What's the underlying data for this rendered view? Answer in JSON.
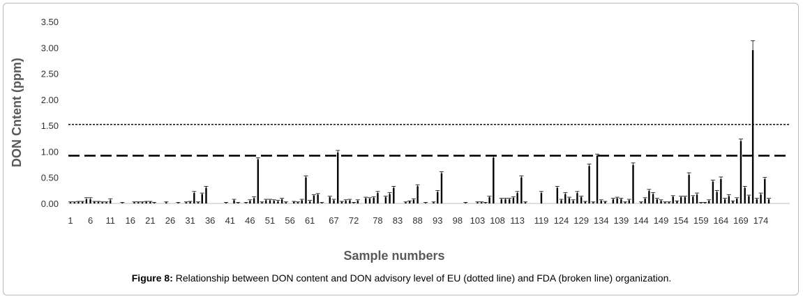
{
  "caption": {
    "label": "Figure 8:",
    "text": "Relationship between DON content and DON advisory level of EU (dotted line) and FDA (broken line) organization."
  },
  "chart_data": {
    "type": "bar",
    "title": "",
    "xlabel": "Sample numbers",
    "ylabel": "DON Cntent (ppm)",
    "ylim": [
      0,
      3.5
    ],
    "yticks": [
      "0.00",
      "0.50",
      "1.00",
      "1.50",
      "2.00",
      "2.50",
      "3.00",
      "3.50"
    ],
    "xtick_labels": [
      {
        "x": 1,
        "label": "1"
      },
      {
        "x": 6,
        "label": "6"
      },
      {
        "x": 11,
        "label": "11"
      },
      {
        "x": 16,
        "label": "16"
      },
      {
        "x": 21,
        "label": "21"
      },
      {
        "x": 26,
        "label": "26"
      },
      {
        "x": 31,
        "label": "31"
      },
      {
        "x": 36,
        "label": "36"
      },
      {
        "x": 41,
        "label": "41"
      },
      {
        "x": 46,
        "label": "46"
      },
      {
        "x": 51,
        "label": "51"
      },
      {
        "x": 56,
        "label": "56"
      },
      {
        "x": 61,
        "label": "61"
      },
      {
        "x": 67,
        "label": "67"
      },
      {
        "x": 72,
        "label": "72"
      },
      {
        "x": 78,
        "label": "78"
      },
      {
        "x": 83,
        "label": "83"
      },
      {
        "x": 88,
        "label": "88"
      },
      {
        "x": 93,
        "label": "93"
      },
      {
        "x": 98,
        "label": "98"
      },
      {
        "x": 103,
        "label": "103"
      },
      {
        "x": 108,
        "label": "108"
      },
      {
        "x": 113,
        "label": "113"
      },
      {
        "x": 119,
        "label": "119"
      },
      {
        "x": 124,
        "label": "124"
      },
      {
        "x": 129,
        "label": "129"
      },
      {
        "x": 134,
        "label": "134"
      },
      {
        "x": 139,
        "label": "139"
      },
      {
        "x": 144,
        "label": "144"
      },
      {
        "x": 149,
        "label": "149"
      },
      {
        "x": 154,
        "label": "154"
      },
      {
        "x": 159,
        "label": "159"
      },
      {
        "x": 164,
        "label": "164"
      },
      {
        "x": 169,
        "label": "169"
      },
      {
        "x": 174,
        "label": "174"
      }
    ],
    "x_range": [
      1,
      176
    ],
    "samples": [
      1,
      2,
      3,
      4,
      5,
      6,
      7,
      8,
      9,
      10,
      11,
      12,
      13,
      14,
      15,
      16,
      17,
      18,
      19,
      20,
      21,
      22,
      23,
      24,
      25,
      26,
      27,
      28,
      29,
      30,
      31,
      32,
      33,
      34,
      35,
      36,
      37,
      38,
      39,
      40,
      41,
      42,
      43,
      44,
      45,
      46,
      47,
      48,
      49,
      50,
      51,
      52,
      53,
      54,
      55,
      56,
      57,
      58,
      59,
      60,
      61,
      62,
      63,
      64,
      65,
      66,
      67,
      68,
      69,
      70,
      71,
      72,
      73,
      74,
      75,
      76,
      77,
      78,
      79,
      80,
      81,
      82,
      83,
      84,
      85,
      86,
      87,
      88,
      89,
      90,
      91,
      92,
      93,
      94,
      95,
      96,
      97,
      98,
      99,
      100,
      101,
      102,
      103,
      104,
      105,
      106,
      107,
      108,
      109,
      110,
      111,
      112,
      113,
      114,
      115,
      116,
      117,
      118,
      119,
      120,
      121,
      122,
      123,
      124,
      125,
      126,
      127,
      128,
      129,
      130,
      131,
      132,
      133,
      134,
      135,
      136,
      137,
      138,
      139,
      140,
      141,
      142,
      143,
      144,
      145,
      146,
      147,
      148,
      149,
      150,
      151,
      152,
      153,
      154,
      155,
      156,
      157,
      158,
      159,
      160,
      161,
      162,
      163,
      164,
      165,
      166,
      167,
      168,
      169,
      170,
      171,
      172,
      173,
      174,
      175,
      176
    ],
    "values": [
      0.02,
      0.02,
      0.03,
      0.03,
      0.08,
      0.08,
      0.03,
      0.03,
      0.02,
      0.02,
      0.06,
      0,
      0,
      0.01,
      0,
      0,
      0.02,
      0.02,
      0.02,
      0.03,
      0.03,
      0.01,
      0,
      0,
      0.02,
      0,
      0,
      0.01,
      0,
      0.02,
      0.03,
      0.2,
      0.02,
      0.18,
      0.3,
      0,
      0,
      0,
      0,
      0.01,
      0,
      0.06,
      0.01,
      0,
      0.01,
      0.05,
      0.1,
      0.85,
      0.02,
      0.06,
      0.06,
      0.05,
      0.04,
      0.08,
      0.02,
      0,
      0.03,
      0.02,
      0.06,
      0.5,
      0.04,
      0.15,
      0.17,
      0.01,
      0,
      0.12,
      0.06,
      0.98,
      0.03,
      0.05,
      0.06,
      0.01,
      0.05,
      0,
      0.1,
      0.09,
      0.11,
      0.2,
      0,
      0.12,
      0.18,
      0.3,
      0,
      0,
      0.02,
      0.04,
      0.07,
      0.33,
      0,
      0.01,
      0,
      0.02,
      0.22,
      0.58,
      0,
      0,
      0,
      0,
      0,
      0.01,
      0,
      0,
      0.02,
      0.02,
      0.01,
      0.12,
      0.88,
      0,
      0.08,
      0.08,
      0.08,
      0.11,
      0.2,
      0.5,
      0.02,
      0,
      0,
      0,
      0.2,
      0,
      0,
      0,
      0.3,
      0.06,
      0.18,
      0.1,
      0.05,
      0.2,
      0.12,
      0.03,
      0.72,
      0.02,
      0.92,
      0.05,
      0.03,
      0,
      0.08,
      0.1,
      0.08,
      0.02,
      0.06,
      0.74,
      0,
      0.02,
      0.09,
      0.24,
      0.18,
      0.08,
      0.05,
      0.02,
      0.02,
      0.13,
      0.04,
      0.12,
      0.12,
      0.55,
      0.13,
      0.17,
      0.01,
      0.01,
      0.05,
      0.42,
      0.22,
      0.47,
      0.08,
      0.14,
      0.04,
      0.09,
      1.2,
      0.3,
      0.14,
      2.95,
      0.08,
      0.17,
      0.47,
      0.08
    ],
    "errors": [
      0.01,
      0.01,
      0.01,
      0.01,
      0.03,
      0.03,
      0.01,
      0.01,
      0.01,
      0.01,
      0.03,
      0,
      0,
      0.01,
      0,
      0,
      0.01,
      0.01,
      0.01,
      0.01,
      0.01,
      0.01,
      0,
      0,
      0.01,
      0,
      0,
      0.01,
      0,
      0.01,
      0.01,
      0.03,
      0.01,
      0.02,
      0.03,
      0,
      0,
      0,
      0,
      0.01,
      0,
      0.02,
      0.01,
      0,
      0.01,
      0.02,
      0.03,
      0.03,
      0.01,
      0.02,
      0.02,
      0.02,
      0.02,
      0.02,
      0.01,
      0,
      0.01,
      0.01,
      0.02,
      0.03,
      0.02,
      0.02,
      0.02,
      0.01,
      0,
      0.02,
      0.02,
      0.04,
      0.01,
      0.02,
      0.02,
      0.01,
      0.02,
      0,
      0.02,
      0.02,
      0.02,
      0.03,
      0,
      0.02,
      0.03,
      0.03,
      0,
      0,
      0.01,
      0.01,
      0.02,
      0.03,
      0,
      0.01,
      0,
      0.01,
      0.03,
      0.03,
      0,
      0,
      0,
      0,
      0,
      0.01,
      0,
      0,
      0.01,
      0.01,
      0.01,
      0.02,
      0.03,
      0,
      0.02,
      0.02,
      0.02,
      0.02,
      0.03,
      0.03,
      0.01,
      0,
      0,
      0,
      0.03,
      0,
      0,
      0,
      0.03,
      0.02,
      0.03,
      0.02,
      0.02,
      0.03,
      0.02,
      0.01,
      0.04,
      0.01,
      0.03,
      0.02,
      0.01,
      0,
      0.02,
      0.02,
      0.02,
      0.01,
      0.02,
      0.04,
      0,
      0.01,
      0.02,
      0.03,
      0.03,
      0.02,
      0.02,
      0.01,
      0.01,
      0.02,
      0.01,
      0.02,
      0.02,
      0.04,
      0.02,
      0.03,
      0.01,
      0.01,
      0.02,
      0.03,
      0.03,
      0.04,
      0.02,
      0.03,
      0.01,
      0.02,
      0.04,
      0.03,
      0.02,
      0.18,
      0.02,
      0.03,
      0.03,
      0.02
    ],
    "reference_lines": [
      {
        "y": 1.52,
        "style": "dotted"
      },
      {
        "y": 0.92,
        "style": "dashed"
      }
    ],
    "grid": false,
    "legend": "none"
  }
}
